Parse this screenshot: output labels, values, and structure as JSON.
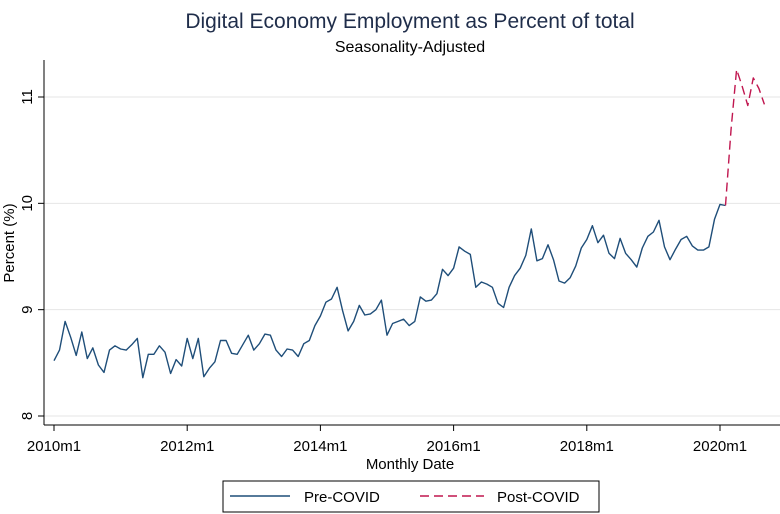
{
  "chart_data": {
    "type": "line",
    "title": "Digital Economy Employment as Percent of total",
    "subtitle": "Seasonality-Adjusted",
    "xlabel": "Monthly Date",
    "ylabel": "Percent (%)",
    "xlim": [
      "2010m1",
      "2020m9"
    ],
    "ylim": [
      8,
      11.3
    ],
    "x_ticks": [
      "2010m1",
      "2012m1",
      "2014m1",
      "2016m1",
      "2018m1",
      "2020m1"
    ],
    "y_ticks": [
      "8",
      "9",
      "10",
      "11"
    ],
    "grid": "horizontal",
    "legend_position": "bottom",
    "series": [
      {
        "name": "Pre-COVID",
        "color": "#1f4e79",
        "style": "solid",
        "x": [
          "2010m1",
          "2010m2",
          "2010m3",
          "2010m4",
          "2010m5",
          "2010m6",
          "2010m7",
          "2010m8",
          "2010m9",
          "2010m10",
          "2010m11",
          "2010m12",
          "2011m1",
          "2011m2",
          "2011m3",
          "2011m4",
          "2011m5",
          "2011m6",
          "2011m7",
          "2011m8",
          "2011m9",
          "2011m10",
          "2011m11",
          "2011m12",
          "2012m1",
          "2012m2",
          "2012m3",
          "2012m4",
          "2012m5",
          "2012m6",
          "2012m7",
          "2012m8",
          "2012m9",
          "2012m10",
          "2012m11",
          "2012m12",
          "2013m1",
          "2013m2",
          "2013m3",
          "2013m4",
          "2013m5",
          "2013m6",
          "2013m7",
          "2013m8",
          "2013m9",
          "2013m10",
          "2013m11",
          "2013m12",
          "2014m1",
          "2014m2",
          "2014m3",
          "2014m4",
          "2014m5",
          "2014m6",
          "2014m7",
          "2014m8",
          "2014m9",
          "2014m10",
          "2014m11",
          "2014m12",
          "2015m1",
          "2015m2",
          "2015m3",
          "2015m4",
          "2015m5",
          "2015m6",
          "2015m7",
          "2015m8",
          "2015m9",
          "2015m10",
          "2015m11",
          "2015m12",
          "2016m1",
          "2016m2",
          "2016m3",
          "2016m4",
          "2016m5",
          "2016m6",
          "2016m7",
          "2016m8",
          "2016m9",
          "2016m10",
          "2016m11",
          "2016m12",
          "2017m1",
          "2017m2",
          "2017m3",
          "2017m4",
          "2017m5",
          "2017m6",
          "2017m7",
          "2017m8",
          "2017m9",
          "2017m10",
          "2017m11",
          "2017m12",
          "2018m1",
          "2018m2",
          "2018m3",
          "2018m4",
          "2018m5",
          "2018m6",
          "2018m7",
          "2018m8",
          "2018m9",
          "2018m10",
          "2018m11",
          "2018m12",
          "2019m1",
          "2019m2",
          "2019m3",
          "2019m4",
          "2019m5",
          "2019m6",
          "2019m7",
          "2019m8",
          "2019m9",
          "2019m10",
          "2019m11",
          "2019m12",
          "2020m1",
          "2020m2"
        ],
        "values": [
          8.52,
          8.62,
          8.89,
          8.74,
          8.57,
          8.79,
          8.54,
          8.64,
          8.48,
          8.41,
          8.62,
          8.66,
          8.63,
          8.62,
          8.67,
          8.73,
          8.36,
          8.58,
          8.58,
          8.66,
          8.6,
          8.4,
          8.53,
          8.47,
          8.73,
          8.54,
          8.73,
          8.37,
          8.45,
          8.51,
          8.71,
          8.71,
          8.59,
          8.58,
          8.67,
          8.76,
          8.62,
          8.68,
          8.77,
          8.76,
          8.62,
          8.56,
          8.63,
          8.62,
          8.56,
          8.68,
          8.71,
          8.85,
          8.94,
          9.07,
          9.1,
          9.21,
          8.99,
          8.8,
          8.89,
          9.04,
          8.95,
          8.96,
          9.0,
          9.09,
          8.76,
          8.87,
          8.89,
          8.91,
          8.85,
          8.89,
          9.12,
          9.08,
          9.09,
          9.15,
          9.38,
          9.32,
          9.39,
          9.59,
          9.55,
          9.52,
          9.21,
          9.26,
          9.24,
          9.21,
          9.06,
          9.02,
          9.21,
          9.32,
          9.39,
          9.51,
          9.76,
          9.46,
          9.48,
          9.61,
          9.47,
          9.27,
          9.25,
          9.3,
          9.41,
          9.58,
          9.66,
          9.79,
          9.63,
          9.7,
          9.53,
          9.48,
          9.67,
          9.53,
          9.47,
          9.4,
          9.58,
          9.69,
          9.73,
          9.84,
          9.59,
          9.47,
          9.57,
          9.66,
          9.69,
          9.6,
          9.56,
          9.56,
          9.59,
          9.85,
          9.99,
          9.98
        ]
      },
      {
        "name": "Post-COVID",
        "color": "#c0164f",
        "style": "dashed",
        "x": [
          "2020m2",
          "2020m3",
          "2020m4",
          "2020m5",
          "2020m6",
          "2020m7",
          "2020m8",
          "2020m9"
        ],
        "values": [
          9.98,
          10.7,
          11.26,
          11.1,
          10.92,
          11.18,
          11.08,
          10.93
        ]
      }
    ]
  }
}
